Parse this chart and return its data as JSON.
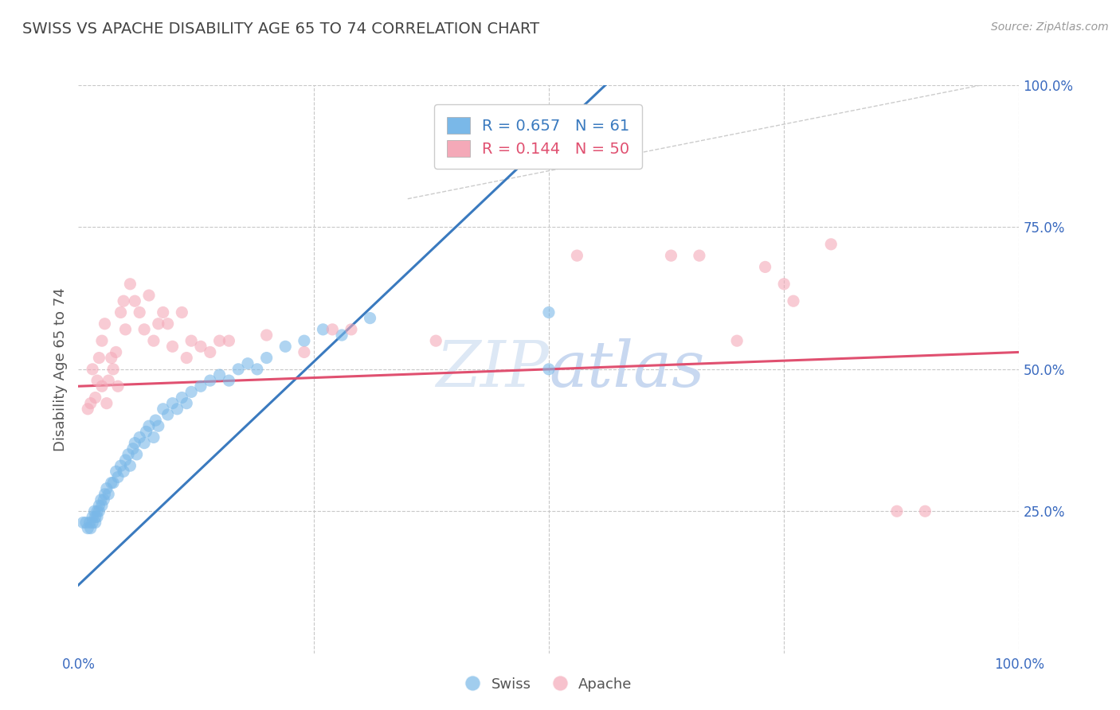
{
  "title": "SWISS VS APACHE DISABILITY AGE 65 TO 74 CORRELATION CHART",
  "source_text": "Source: ZipAtlas.com",
  "ylabel": "Disability Age 65 to 74",
  "xlim": [
    0.0,
    1.0
  ],
  "ylim": [
    0.0,
    1.0
  ],
  "swiss_R": "0.657",
  "swiss_N": "61",
  "apache_R": "0.144",
  "apache_N": "50",
  "swiss_color": "#7ab8e8",
  "apache_color": "#f4a9b8",
  "swiss_line_color": "#3a7abf",
  "apache_line_color": "#e05070",
  "watermark_color": "#dde8f5",
  "grid_color": "#c8c8c8",
  "title_color": "#444444",
  "axis_label_color": "#3a6abf",
  "swiss_scatter": [
    [
      0.005,
      0.23
    ],
    [
      0.008,
      0.23
    ],
    [
      0.01,
      0.22
    ],
    [
      0.012,
      0.23
    ],
    [
      0.013,
      0.22
    ],
    [
      0.015,
      0.24
    ],
    [
      0.015,
      0.23
    ],
    [
      0.017,
      0.25
    ],
    [
      0.018,
      0.23
    ],
    [
      0.018,
      0.24
    ],
    [
      0.02,
      0.24
    ],
    [
      0.02,
      0.25
    ],
    [
      0.022,
      0.26
    ],
    [
      0.022,
      0.25
    ],
    [
      0.024,
      0.27
    ],
    [
      0.025,
      0.26
    ],
    [
      0.027,
      0.27
    ],
    [
      0.028,
      0.28
    ],
    [
      0.03,
      0.29
    ],
    [
      0.032,
      0.28
    ],
    [
      0.035,
      0.3
    ],
    [
      0.037,
      0.3
    ],
    [
      0.04,
      0.32
    ],
    [
      0.042,
      0.31
    ],
    [
      0.045,
      0.33
    ],
    [
      0.048,
      0.32
    ],
    [
      0.05,
      0.34
    ],
    [
      0.053,
      0.35
    ],
    [
      0.055,
      0.33
    ],
    [
      0.058,
      0.36
    ],
    [
      0.06,
      0.37
    ],
    [
      0.062,
      0.35
    ],
    [
      0.065,
      0.38
    ],
    [
      0.07,
      0.37
    ],
    [
      0.072,
      0.39
    ],
    [
      0.075,
      0.4
    ],
    [
      0.08,
      0.38
    ],
    [
      0.082,
      0.41
    ],
    [
      0.085,
      0.4
    ],
    [
      0.09,
      0.43
    ],
    [
      0.095,
      0.42
    ],
    [
      0.1,
      0.44
    ],
    [
      0.105,
      0.43
    ],
    [
      0.11,
      0.45
    ],
    [
      0.115,
      0.44
    ],
    [
      0.12,
      0.46
    ],
    [
      0.13,
      0.47
    ],
    [
      0.14,
      0.48
    ],
    [
      0.15,
      0.49
    ],
    [
      0.16,
      0.48
    ],
    [
      0.17,
      0.5
    ],
    [
      0.18,
      0.51
    ],
    [
      0.19,
      0.5
    ],
    [
      0.2,
      0.52
    ],
    [
      0.22,
      0.54
    ],
    [
      0.24,
      0.55
    ],
    [
      0.26,
      0.57
    ],
    [
      0.28,
      0.56
    ],
    [
      0.31,
      0.59
    ],
    [
      0.5,
      0.5
    ],
    [
      0.5,
      0.6
    ]
  ],
  "apache_scatter": [
    [
      0.01,
      0.43
    ],
    [
      0.013,
      0.44
    ],
    [
      0.015,
      0.5
    ],
    [
      0.018,
      0.45
    ],
    [
      0.02,
      0.48
    ],
    [
      0.022,
      0.52
    ],
    [
      0.025,
      0.47
    ],
    [
      0.025,
      0.55
    ],
    [
      0.028,
      0.58
    ],
    [
      0.03,
      0.44
    ],
    [
      0.032,
      0.48
    ],
    [
      0.035,
      0.52
    ],
    [
      0.037,
      0.5
    ],
    [
      0.04,
      0.53
    ],
    [
      0.042,
      0.47
    ],
    [
      0.045,
      0.6
    ],
    [
      0.048,
      0.62
    ],
    [
      0.05,
      0.57
    ],
    [
      0.055,
      0.65
    ],
    [
      0.06,
      0.62
    ],
    [
      0.065,
      0.6
    ],
    [
      0.07,
      0.57
    ],
    [
      0.075,
      0.63
    ],
    [
      0.08,
      0.55
    ],
    [
      0.085,
      0.58
    ],
    [
      0.09,
      0.6
    ],
    [
      0.095,
      0.58
    ],
    [
      0.1,
      0.54
    ],
    [
      0.11,
      0.6
    ],
    [
      0.115,
      0.52
    ],
    [
      0.12,
      0.55
    ],
    [
      0.13,
      0.54
    ],
    [
      0.14,
      0.53
    ],
    [
      0.15,
      0.55
    ],
    [
      0.16,
      0.55
    ],
    [
      0.2,
      0.56
    ],
    [
      0.24,
      0.53
    ],
    [
      0.27,
      0.57
    ],
    [
      0.29,
      0.57
    ],
    [
      0.38,
      0.55
    ],
    [
      0.53,
      0.7
    ],
    [
      0.63,
      0.7
    ],
    [
      0.66,
      0.7
    ],
    [
      0.7,
      0.55
    ],
    [
      0.73,
      0.68
    ],
    [
      0.75,
      0.65
    ],
    [
      0.76,
      0.62
    ],
    [
      0.8,
      0.72
    ],
    [
      0.87,
      0.25
    ],
    [
      0.9,
      0.25
    ]
  ],
  "swiss_trendline_x": [
    0.0,
    0.56
  ],
  "swiss_trendline_y": [
    0.12,
    1.0
  ],
  "apache_trendline_x": [
    0.0,
    1.0
  ],
  "apache_trendline_y": [
    0.47,
    0.53
  ],
  "ref_line_x": [
    0.35,
    1.0
  ],
  "ref_line_y": [
    0.8,
    1.0
  ]
}
